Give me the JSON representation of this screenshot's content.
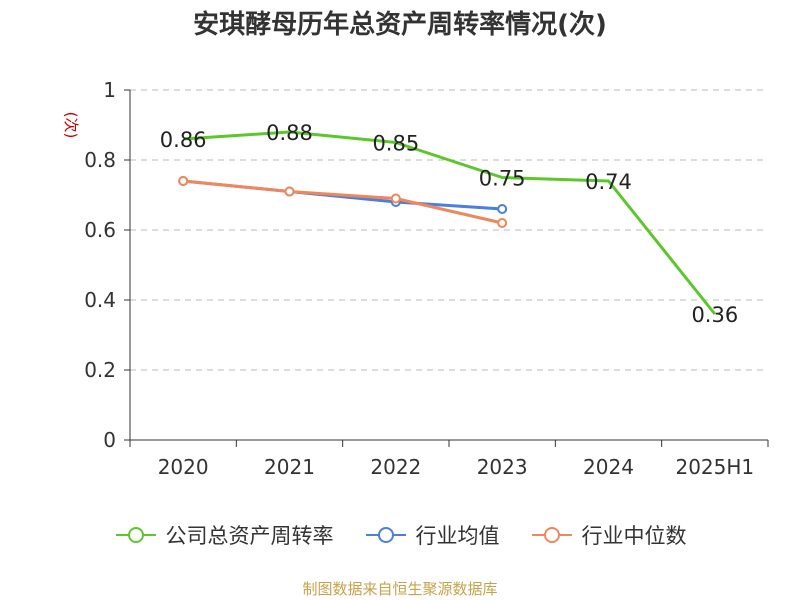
{
  "title": "安琪酵母历年总资产周转率情况(次)",
  "unit_label": "(次)",
  "source": "制图数据来自恒生聚源数据库",
  "chart_data": {
    "type": "line",
    "title": "安琪酵母历年总资产周转率情况(次)",
    "ylabel": "(次)",
    "xlabel": "",
    "categories": [
      "2020",
      "2021",
      "2022",
      "2023",
      "2024",
      "2025H1"
    ],
    "ylim": [
      0,
      1
    ],
    "yticks": [
      "0",
      "0.2",
      "0.4",
      "0.6",
      "0.8",
      "1"
    ],
    "ytick_values": [
      0,
      0.2,
      0.4,
      0.6,
      0.8,
      1
    ],
    "grid": true,
    "legend_position": "bottom",
    "series": [
      {
        "name": "公司总资产周转率",
        "color": "#5cc72a",
        "values": [
          0.86,
          0.88,
          0.85,
          0.75,
          0.74,
          0.36
        ],
        "labels": [
          "0.86",
          "0.88",
          "0.85",
          "0.75",
          "0.74",
          "0.36"
        ],
        "markers": false
      },
      {
        "name": "行业均值",
        "color": "#4a7fe0",
        "values": [
          0.74,
          0.71,
          0.68,
          0.66,
          null,
          null
        ],
        "labels": [],
        "markers": true
      },
      {
        "name": "行业中位数",
        "color": "#f0875a",
        "values": [
          0.74,
          0.71,
          0.69,
          0.62,
          null,
          null
        ],
        "labels": [],
        "markers": true
      }
    ]
  }
}
